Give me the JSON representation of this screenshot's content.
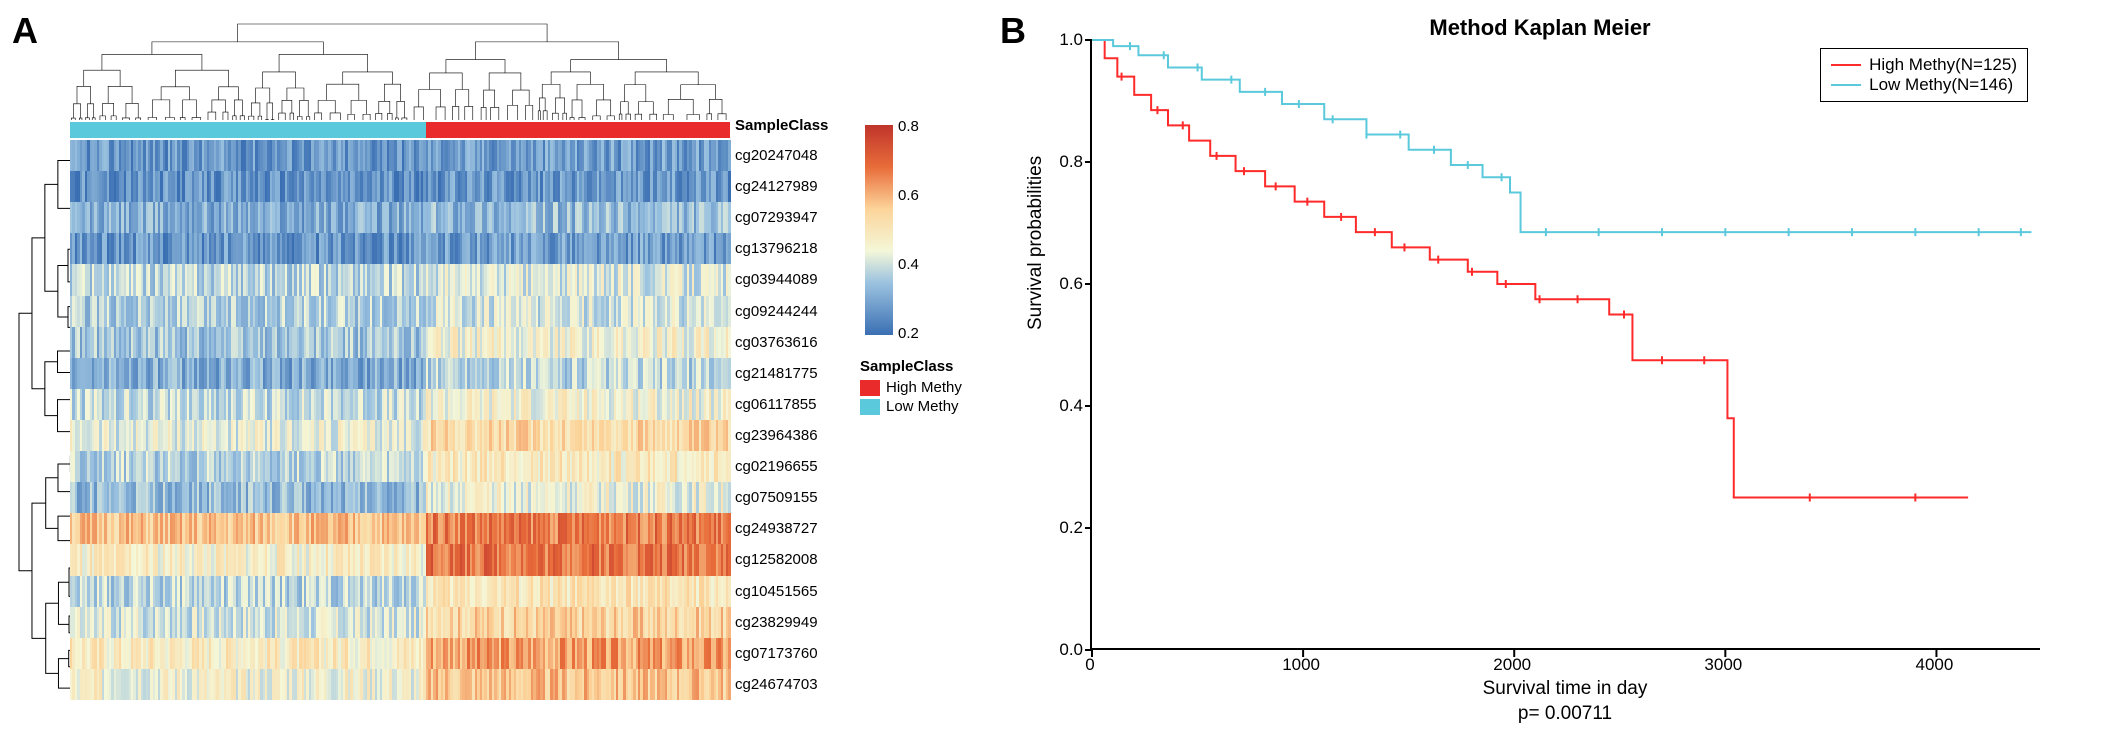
{
  "panelA": {
    "label": "A",
    "heatmap": {
      "type": "heatmap",
      "row_labels": [
        "cg20247048",
        "cg24127989",
        "cg07293947",
        "cg13796218",
        "cg03944089",
        "cg09244244",
        "cg03763616",
        "cg21481775",
        "cg06117855",
        "cg23964386",
        "cg02196655",
        "cg07509155",
        "cg24938727",
        "cg12582008",
        "cg10451565",
        "cg23829949",
        "cg07173760",
        "cg24674703"
      ],
      "sample_class_label": "SampleClass",
      "n_columns": 271,
      "class_split": 146,
      "row_means_low": [
        0.12,
        0.1,
        0.18,
        0.12,
        0.3,
        0.28,
        0.25,
        0.18,
        0.32,
        0.38,
        0.3,
        0.22,
        0.62,
        0.45,
        0.3,
        0.35,
        0.48,
        0.42
      ],
      "row_means_high": [
        0.14,
        0.12,
        0.22,
        0.14,
        0.36,
        0.34,
        0.42,
        0.3,
        0.42,
        0.55,
        0.48,
        0.4,
        0.78,
        0.8,
        0.5,
        0.58,
        0.7,
        0.62
      ],
      "row_noise": 0.12,
      "color_stops": [
        {
          "v": 0.0,
          "c": "#3a6fb3"
        },
        {
          "v": 0.25,
          "c": "#9cc3e0"
        },
        {
          "v": 0.4,
          "c": "#f4f7d8"
        },
        {
          "v": 0.6,
          "c": "#fcd49a"
        },
        {
          "v": 0.8,
          "c": "#e86c3a"
        },
        {
          "v": 1.0,
          "c": "#c0342b"
        }
      ],
      "colorbar": {
        "min": 0,
        "max": 0.9,
        "ticks": [
          0.8,
          0.6,
          0.4,
          0.2
        ]
      },
      "legend": {
        "title": "SampleClass",
        "items": [
          {
            "label": "High Methy",
            "color": "#e92b2b"
          },
          {
            "label": "Low Methy",
            "color": "#5bc9dc"
          }
        ]
      },
      "dendrogram_color": "#000000",
      "label_fontsize": 15
    }
  },
  "panelB": {
    "label": "B",
    "km": {
      "type": "kaplan_meier",
      "title": "Method Kaplan Meier",
      "xlabel": "Survival time in day",
      "ylabel": "Survival probabilities",
      "pvalue_text": "p= 0.00711",
      "xlim": [
        0,
        4500
      ],
      "ylim": [
        0,
        1.0
      ],
      "xticks": [
        0,
        1000,
        2000,
        3000,
        4000
      ],
      "yticks": [
        0.0,
        0.2,
        0.4,
        0.6,
        0.8,
        1.0
      ],
      "line_width": 2,
      "censor_tick_height": 8,
      "series": [
        {
          "name": "high",
          "label": "High Methy(N=125)",
          "color": "#ff2a2a",
          "steps": [
            [
              0,
              1.0
            ],
            [
              60,
              0.97
            ],
            [
              120,
              0.94
            ],
            [
              200,
              0.91
            ],
            [
              280,
              0.885
            ],
            [
              360,
              0.86
            ],
            [
              460,
              0.835
            ],
            [
              560,
              0.81
            ],
            [
              680,
              0.785
            ],
            [
              820,
              0.76
            ],
            [
              960,
              0.735
            ],
            [
              1100,
              0.71
            ],
            [
              1250,
              0.685
            ],
            [
              1420,
              0.66
            ],
            [
              1600,
              0.64
            ],
            [
              1780,
              0.62
            ],
            [
              1920,
              0.6
            ],
            [
              2100,
              0.575
            ],
            [
              2280,
              0.575
            ],
            [
              2450,
              0.55
            ],
            [
              2560,
              0.475
            ],
            [
              2780,
              0.475
            ],
            [
              3010,
              0.38
            ],
            [
              3040,
              0.25
            ],
            [
              4150,
              0.25
            ]
          ],
          "censors": [
            140,
            310,
            430,
            590,
            720,
            870,
            1020,
            1180,
            1340,
            1480,
            1640,
            1800,
            1960,
            2120,
            2300,
            2520,
            2700,
            2900,
            3400,
            3900
          ]
        },
        {
          "name": "low",
          "label": "Low Methy(N=146)",
          "color": "#5bc9dc",
          "steps": [
            [
              0,
              1.0
            ],
            [
              100,
              0.99
            ],
            [
              220,
              0.975
            ],
            [
              360,
              0.955
            ],
            [
              520,
              0.935
            ],
            [
              700,
              0.915
            ],
            [
              900,
              0.895
            ],
            [
              1100,
              0.87
            ],
            [
              1300,
              0.845
            ],
            [
              1500,
              0.82
            ],
            [
              1700,
              0.795
            ],
            [
              1850,
              0.775
            ],
            [
              1980,
              0.75
            ],
            [
              2030,
              0.685
            ],
            [
              2400,
              0.685
            ],
            [
              3000,
              0.685
            ],
            [
              3600,
              0.685
            ],
            [
              4200,
              0.685
            ],
            [
              4450,
              0.685
            ]
          ],
          "censors": [
            180,
            340,
            500,
            660,
            820,
            980,
            1140,
            1300,
            1460,
            1620,
            1780,
            1940,
            2150,
            2400,
            2700,
            3000,
            3300,
            3600,
            3900,
            4200,
            4400
          ]
        }
      ],
      "legend_border": "#000000",
      "axis_color": "#000000",
      "title_fontsize": 22,
      "label_fontsize": 19,
      "tick_fontsize": 17
    }
  }
}
